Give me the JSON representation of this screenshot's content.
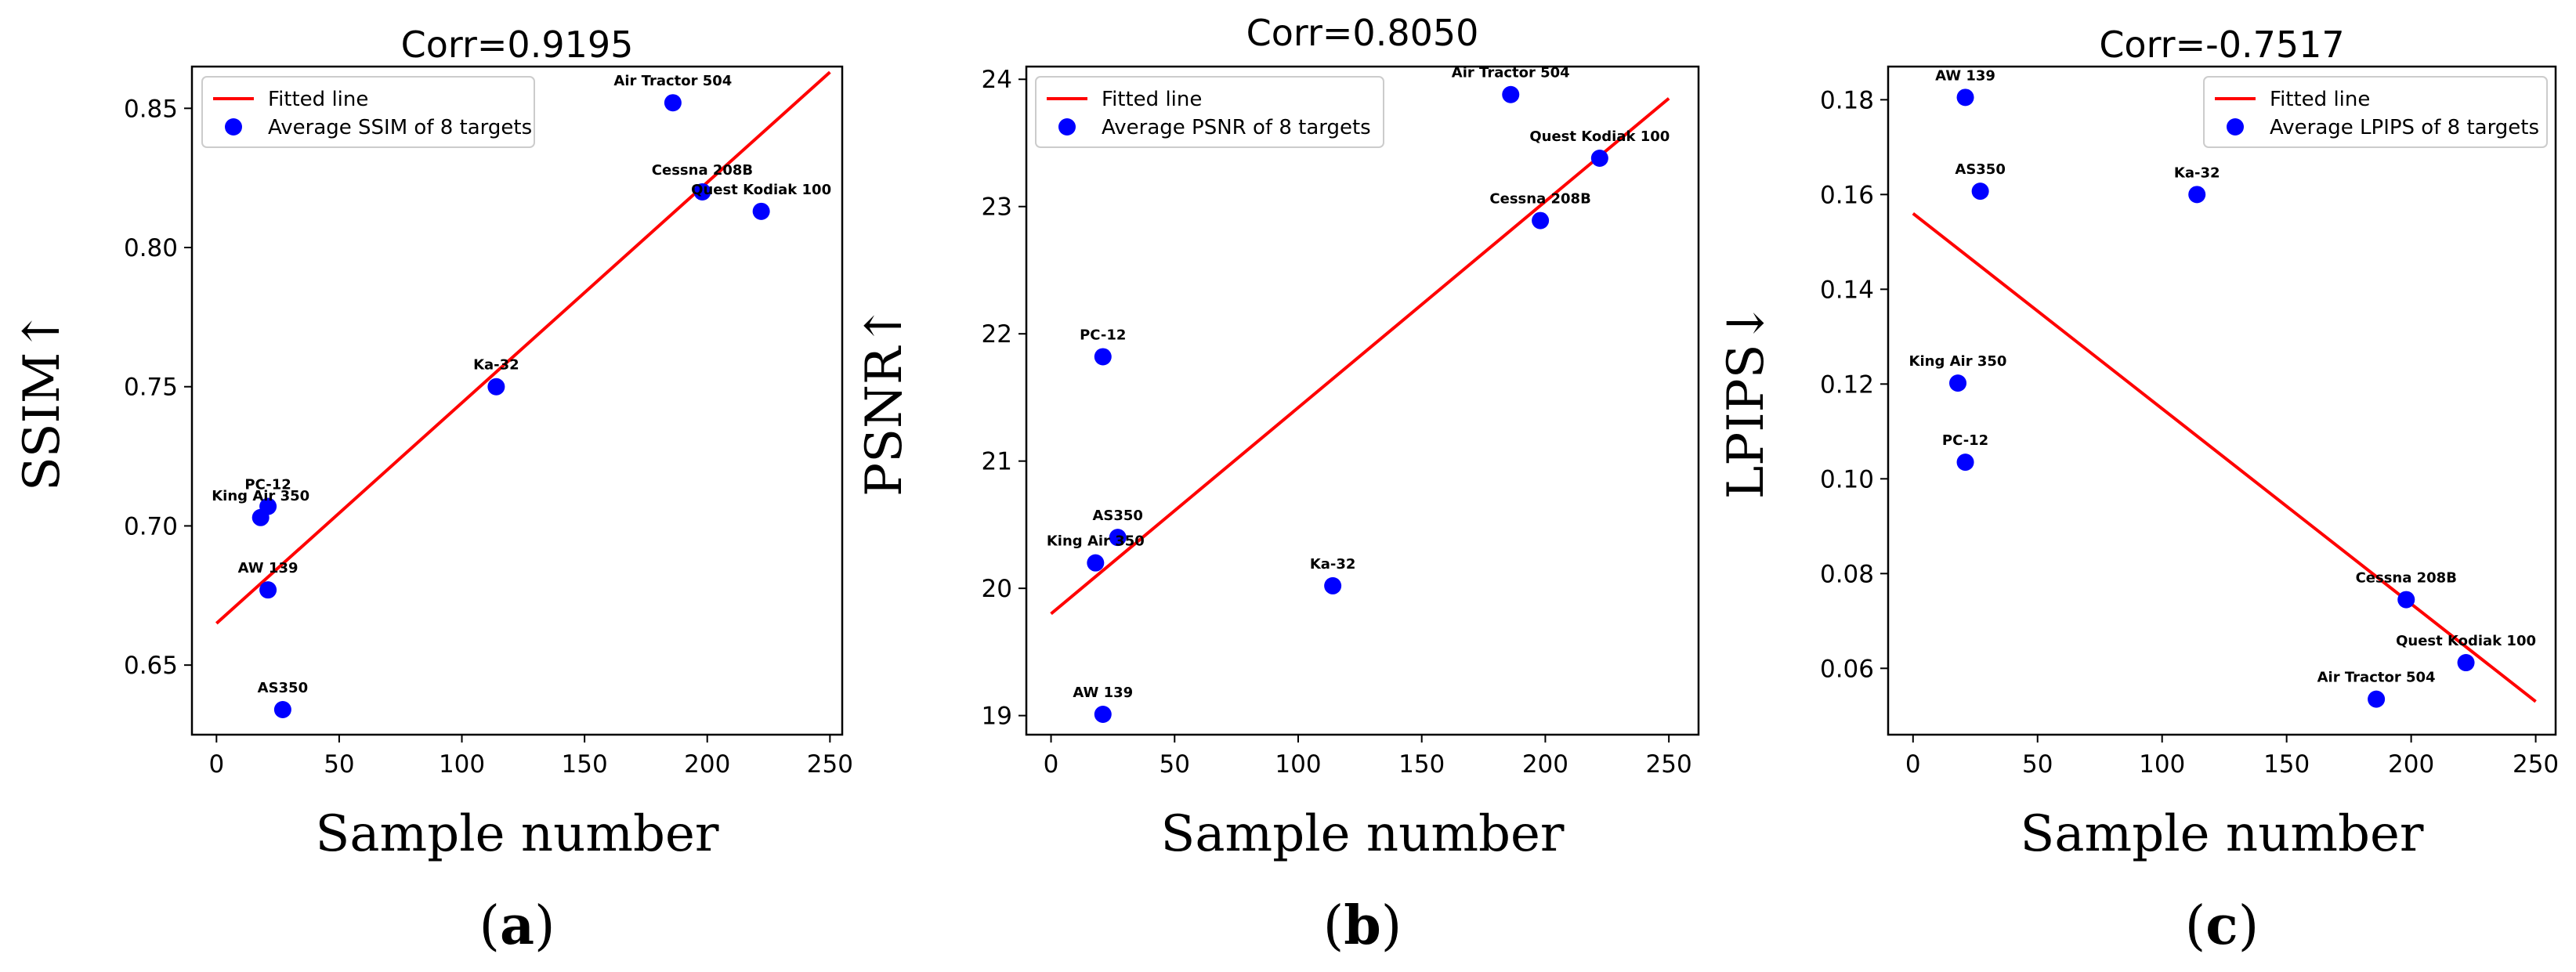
{
  "chart_data": [
    {
      "type": "scatter",
      "panel_label": "a",
      "title": "Corr=0.9195",
      "xlabel": "Sample number",
      "ylabel": "SSIM↑",
      "xlim": [
        -10,
        255
      ],
      "ylim": [
        0.625,
        0.865
      ],
      "xticks": [
        0,
        50,
        100,
        150,
        200,
        250
      ],
      "yticks": [
        0.65,
        0.7,
        0.75,
        0.8,
        0.85
      ],
      "ytick_labels": [
        "0.65",
        "0.70",
        "0.75",
        "0.80",
        "0.85"
      ],
      "legend": {
        "position": "top-left",
        "line_label": "Fitted line",
        "points_label": "Average SSIM of 8 targets"
      },
      "fit_line": {
        "x": [
          0,
          250
        ],
        "y": [
          0.665,
          0.863
        ]
      },
      "points": [
        {
          "label": "Air Tractor 504",
          "x": 186,
          "y": 0.852
        },
        {
          "label": "Cessna 208B",
          "x": 198,
          "y": 0.82
        },
        {
          "label": "Quest Kodiak 100",
          "x": 222,
          "y": 0.813
        },
        {
          "label": "Ka-32",
          "x": 114,
          "y": 0.75
        },
        {
          "label": "PC-12",
          "x": 21,
          "y": 0.707
        },
        {
          "label": "King Air 350",
          "x": 18,
          "y": 0.703
        },
        {
          "label": "AW 139",
          "x": 21,
          "y": 0.677
        },
        {
          "label": "AS350",
          "x": 27,
          "y": 0.634
        }
      ]
    },
    {
      "type": "scatter",
      "panel_label": "b",
      "title": "Corr=0.8050",
      "xlabel": "Sample number",
      "ylabel": "PSNR↑",
      "xlim": [
        -10,
        262
      ],
      "ylim": [
        18.85,
        24.1
      ],
      "xticks": [
        0,
        50,
        100,
        150,
        200,
        250
      ],
      "yticks": [
        19,
        20,
        21,
        22,
        23,
        24
      ],
      "ytick_labels": [
        "19",
        "20",
        "21",
        "22",
        "23",
        "24"
      ],
      "legend": {
        "position": "top-left",
        "line_label": "Fitted line",
        "points_label": "Average PSNR of 8 targets"
      },
      "fit_line": {
        "x": [
          0,
          250
        ],
        "y": [
          19.8,
          23.85
        ]
      },
      "points": [
        {
          "label": "Air Tractor 504",
          "x": 186,
          "y": 23.88
        },
        {
          "label": "Quest Kodiak 100",
          "x": 222,
          "y": 23.38
        },
        {
          "label": "Cessna 208B",
          "x": 198,
          "y": 22.89
        },
        {
          "label": "PC-12",
          "x": 21,
          "y": 21.82
        },
        {
          "label": "AS350",
          "x": 27,
          "y": 20.4
        },
        {
          "label": "King Air 350",
          "x": 18,
          "y": 20.2
        },
        {
          "label": "Ka-32",
          "x": 114,
          "y": 20.02
        },
        {
          "label": "AW 139",
          "x": 21,
          "y": 19.01
        }
      ]
    },
    {
      "type": "scatter",
      "panel_label": "c",
      "title": "Corr=-0.7517",
      "xlabel": "Sample number",
      "ylabel": "LPIPS↓",
      "xlim": [
        -10,
        258
      ],
      "ylim": [
        0.046,
        0.187
      ],
      "xticks": [
        0,
        50,
        100,
        150,
        200,
        250
      ],
      "yticks": [
        0.06,
        0.08,
        0.1,
        0.12,
        0.14,
        0.16,
        0.18
      ],
      "ytick_labels": [
        "0.06",
        "0.08",
        "0.10",
        "0.12",
        "0.14",
        "0.16",
        "0.18"
      ],
      "legend": {
        "position": "top-right",
        "line_label": "Fitted line",
        "points_label": "Average LPIPS of 8 targets"
      },
      "fit_line": {
        "x": [
          0,
          250
        ],
        "y": [
          0.156,
          0.053
        ]
      },
      "points": [
        {
          "label": "AW 139",
          "x": 21,
          "y": 0.1805
        },
        {
          "label": "AS350",
          "x": 27,
          "y": 0.1607
        },
        {
          "label": "Ka-32",
          "x": 114,
          "y": 0.16
        },
        {
          "label": "King Air 350",
          "x": 18,
          "y": 0.1202
        },
        {
          "label": "PC-12",
          "x": 21,
          "y": 0.1035
        },
        {
          "label": "Cessna 208B",
          "x": 198,
          "y": 0.0745
        },
        {
          "label": "Quest Kodiak 100",
          "x": 222,
          "y": 0.0612
        },
        {
          "label": "Air Tractor 504",
          "x": 186,
          "y": 0.0535
        }
      ]
    }
  ],
  "colors": {
    "line": "#ff0000",
    "points": "#0000ff",
    "text": "#000000"
  }
}
